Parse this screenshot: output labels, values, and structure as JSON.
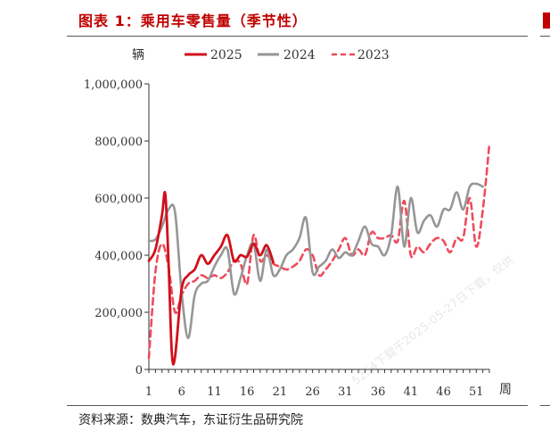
{
  "figure": {
    "title": "图表 1：乘用车零售量（季节性）",
    "source": "资料来源：数典汽车，东证衍生品研究院",
    "watermark": "5254下载于2025-05-27日下载，仅供"
  },
  "colors": {
    "title": "#c00000",
    "s2025": "#d0101a",
    "s2024": "#969696",
    "s2023": "#ee4c5c"
  },
  "chart_data": {
    "type": "line",
    "title": "乘用车零售量（季节性）",
    "ylabel": "辆",
    "xlabel": "周",
    "ylim": [
      0,
      1000000
    ],
    "xlim": [
      1,
      53
    ],
    "yticks": [
      0,
      200000,
      400000,
      600000,
      800000,
      1000000
    ],
    "ytick_labels": [
      "0",
      "200,000",
      "400,000",
      "600,000",
      "800,000",
      "1,000,000"
    ],
    "xticks": [
      1,
      6,
      11,
      16,
      21,
      26,
      31,
      36,
      41,
      46,
      51
    ],
    "xtick_labels": [
      "1",
      "6",
      "11",
      "16",
      "21",
      "26",
      "31",
      "36",
      "41",
      "46",
      "51"
    ],
    "legend_position": "top",
    "series": [
      {
        "name": "2025",
        "style": "solid",
        "x": [
          1,
          2,
          3,
          3.5,
          4,
          4.5,
          5,
          6,
          7,
          8,
          9,
          10,
          11,
          12,
          13,
          14,
          15,
          16,
          17,
          18,
          19,
          20
        ],
        "y": [
          380000,
          420000,
          540000,
          615000,
          380000,
          60000,
          45000,
          280000,
          330000,
          350000,
          400000,
          370000,
          400000,
          430000,
          470000,
          380000,
          400000,
          395000,
          440000,
          400000,
          435000,
          375000
        ]
      },
      {
        "name": "2024",
        "style": "solid",
        "x": [
          1,
          2,
          3,
          4,
          5,
          6,
          7,
          8,
          9,
          10,
          11,
          12,
          13,
          14,
          15,
          16,
          17,
          18,
          19,
          20,
          21,
          22,
          23,
          24,
          25,
          26,
          27,
          28,
          29,
          30,
          31,
          32,
          33,
          34,
          35,
          36,
          37,
          38,
          39,
          40,
          41,
          42,
          43,
          44,
          45,
          46,
          47,
          48,
          49,
          50,
          51,
          52
        ],
        "y": [
          450000,
          455000,
          500000,
          560000,
          550000,
          270000,
          110000,
          260000,
          300000,
          310000,
          360000,
          400000,
          420000,
          265000,
          320000,
          400000,
          440000,
          310000,
          420000,
          330000,
          350000,
          400000,
          420000,
          460000,
          530000,
          340000,
          360000,
          380000,
          420000,
          390000,
          410000,
          400000,
          450000,
          500000,
          440000,
          430000,
          400000,
          470000,
          640000,
          430000,
          600000,
          480000,
          520000,
          540000,
          500000,
          560000,
          560000,
          620000,
          560000,
          640000,
          650000,
          640000
        ]
      },
      {
        "name": "2023",
        "style": "dashed",
        "x": [
          1,
          2,
          3,
          4,
          5,
          6,
          7,
          8,
          9,
          10,
          11,
          12,
          13,
          14,
          15,
          16,
          17,
          18,
          19,
          20,
          21,
          22,
          23,
          24,
          25,
          26,
          27,
          28,
          29,
          30,
          31,
          32,
          33,
          34,
          35,
          36,
          37,
          38,
          39,
          40,
          41,
          42,
          43,
          44,
          45,
          46,
          47,
          48,
          49,
          50,
          51,
          52,
          53
        ],
        "y": [
          40000,
          340000,
          440000,
          360000,
          200000,
          260000,
          300000,
          310000,
          330000,
          320000,
          330000,
          320000,
          340000,
          380000,
          370000,
          300000,
          470000,
          380000,
          400000,
          370000,
          360000,
          350000,
          360000,
          380000,
          420000,
          400000,
          330000,
          350000,
          380000,
          420000,
          460000,
          400000,
          420000,
          400000,
          480000,
          460000,
          460000,
          470000,
          450000,
          590000,
          400000,
          430000,
          410000,
          440000,
          460000,
          450000,
          410000,
          460000,
          460000,
          600000,
          430000,
          560000,
          790000
        ]
      }
    ]
  }
}
